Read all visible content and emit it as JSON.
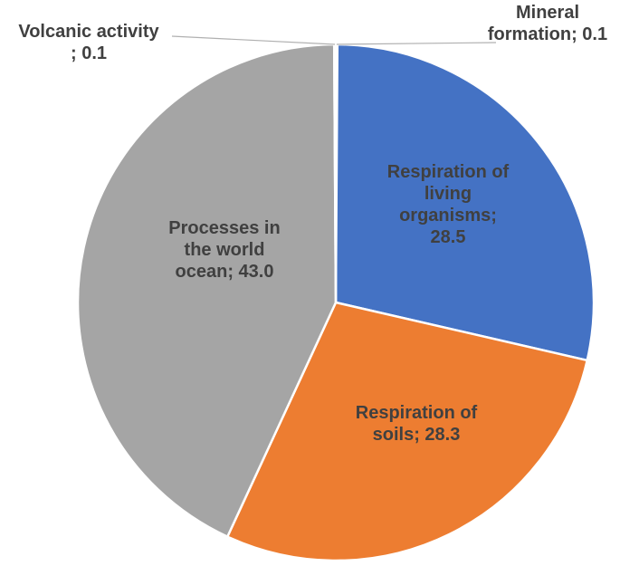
{
  "chart_data": {
    "type": "pie",
    "title": "",
    "slices": [
      {
        "label": "Mineral formation",
        "value": 0.1,
        "color": "#4472c4"
      },
      {
        "label": "Respiration of living organisms",
        "value": 28.5,
        "color": "#4472c4"
      },
      {
        "label": "Respiration of soils",
        "value": 28.3,
        "color": "#ed7d31"
      },
      {
        "label": "Processes in the world ocean",
        "value": 43.0,
        "color": "#a5a5a5"
      },
      {
        "label": "Volcanic activity",
        "value": 0.1,
        "color": "#ffc000"
      }
    ],
    "data_labels": [
      {
        "lines": [
          "Mineral",
          "formation;  0.1"
        ]
      },
      {
        "lines": [
          "Respiration of",
          "living",
          "organisms;",
          "28.5"
        ]
      },
      {
        "lines": [
          "Respiration of",
          "soils; 28.3"
        ]
      },
      {
        "lines": [
          "Processes in",
          "the world",
          "ocean; 43.0"
        ]
      },
      {
        "lines": [
          "Volcanic activity",
          "; 0.1"
        ]
      }
    ],
    "legend": "none",
    "start_angle": "12 o'clock, clockwise"
  }
}
